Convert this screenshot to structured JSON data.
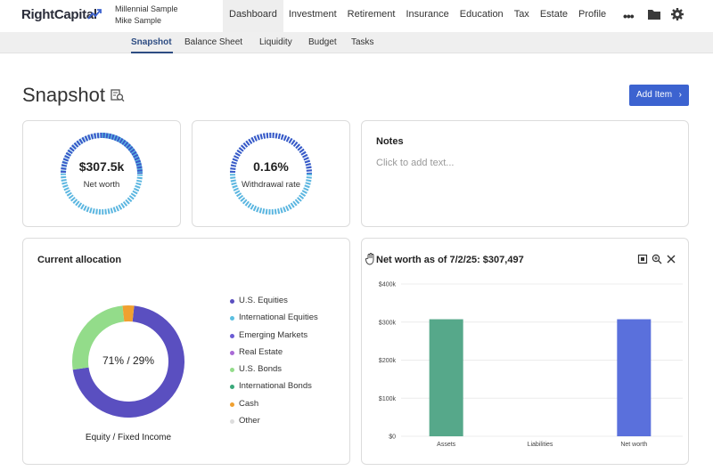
{
  "brand": {
    "name": "RightCapital"
  },
  "clients": [
    "Millennial Sample",
    "Mike Sample"
  ],
  "main_nav": [
    {
      "label": "Dashboard",
      "active": true
    },
    {
      "label": "Investment",
      "active": false
    },
    {
      "label": "Retirement",
      "active": false
    },
    {
      "label": "Insurance",
      "active": false
    },
    {
      "label": "Education",
      "active": false
    },
    {
      "label": "Tax",
      "active": false
    },
    {
      "label": "Estate",
      "active": false
    },
    {
      "label": "Profile",
      "active": false
    }
  ],
  "header_icons": [
    "more-icon",
    "folder-icon",
    "gear-icon"
  ],
  "sub_nav": [
    {
      "label": "Snapshot",
      "active": true
    },
    {
      "label": "Balance Sheet",
      "active": false
    },
    {
      "label": "Liquidity",
      "active": false
    },
    {
      "label": "Budget",
      "active": false
    },
    {
      "label": "Tasks",
      "active": false
    }
  ],
  "page": {
    "title": "Snapshot",
    "add_button": "Add Item"
  },
  "metrics": [
    {
      "value": "$307.5k",
      "label": "Net worth"
    },
    {
      "value": "0.16%",
      "label": "Withdrawal rate"
    }
  ],
  "notes": {
    "title": "Notes",
    "placeholder": "Click to add text..."
  },
  "allocation": {
    "title": "Current allocation",
    "center_text": "71% / 29%",
    "caption": "Equity / Fixed Income",
    "segments": [
      {
        "name": "U.S. Equities",
        "color": "#5a4fc0",
        "percent": 71
      },
      {
        "name": "International Equities",
        "color": "#5bbfe0",
        "percent": 0
      },
      {
        "name": "Emerging Markets",
        "color": "#6b5cd4",
        "percent": 0
      },
      {
        "name": "Real Estate",
        "color": "#a96ad6",
        "percent": 0
      },
      {
        "name": "U.S. Bonds",
        "color": "#93dc8a",
        "percent": 25.7
      },
      {
        "name": "International Bonds",
        "color": "#3aa87a",
        "percent": 0
      },
      {
        "name": "Cash",
        "color": "#f0a030",
        "percent": 3.3
      },
      {
        "name": "Other",
        "color": "#dddddd",
        "percent": 0
      }
    ]
  },
  "net_worth_chart": {
    "title": "Net worth as of 7/2/25: $307,497",
    "tools": [
      "export-icon",
      "zoom-icon",
      "close-icon"
    ]
  },
  "chart_data": {
    "type": "bar",
    "categories": [
      "Assets",
      "Liabilities",
      "Net worth"
    ],
    "values": [
      307497,
      0,
      307497
    ],
    "colors": [
      "#56a88a",
      "#cccccc",
      "#5a70dc"
    ],
    "y_ticks": [
      "$0",
      "$100k",
      "$200k",
      "$300k",
      "$400k"
    ],
    "ylim": [
      0,
      400000
    ],
    "grid": true
  }
}
